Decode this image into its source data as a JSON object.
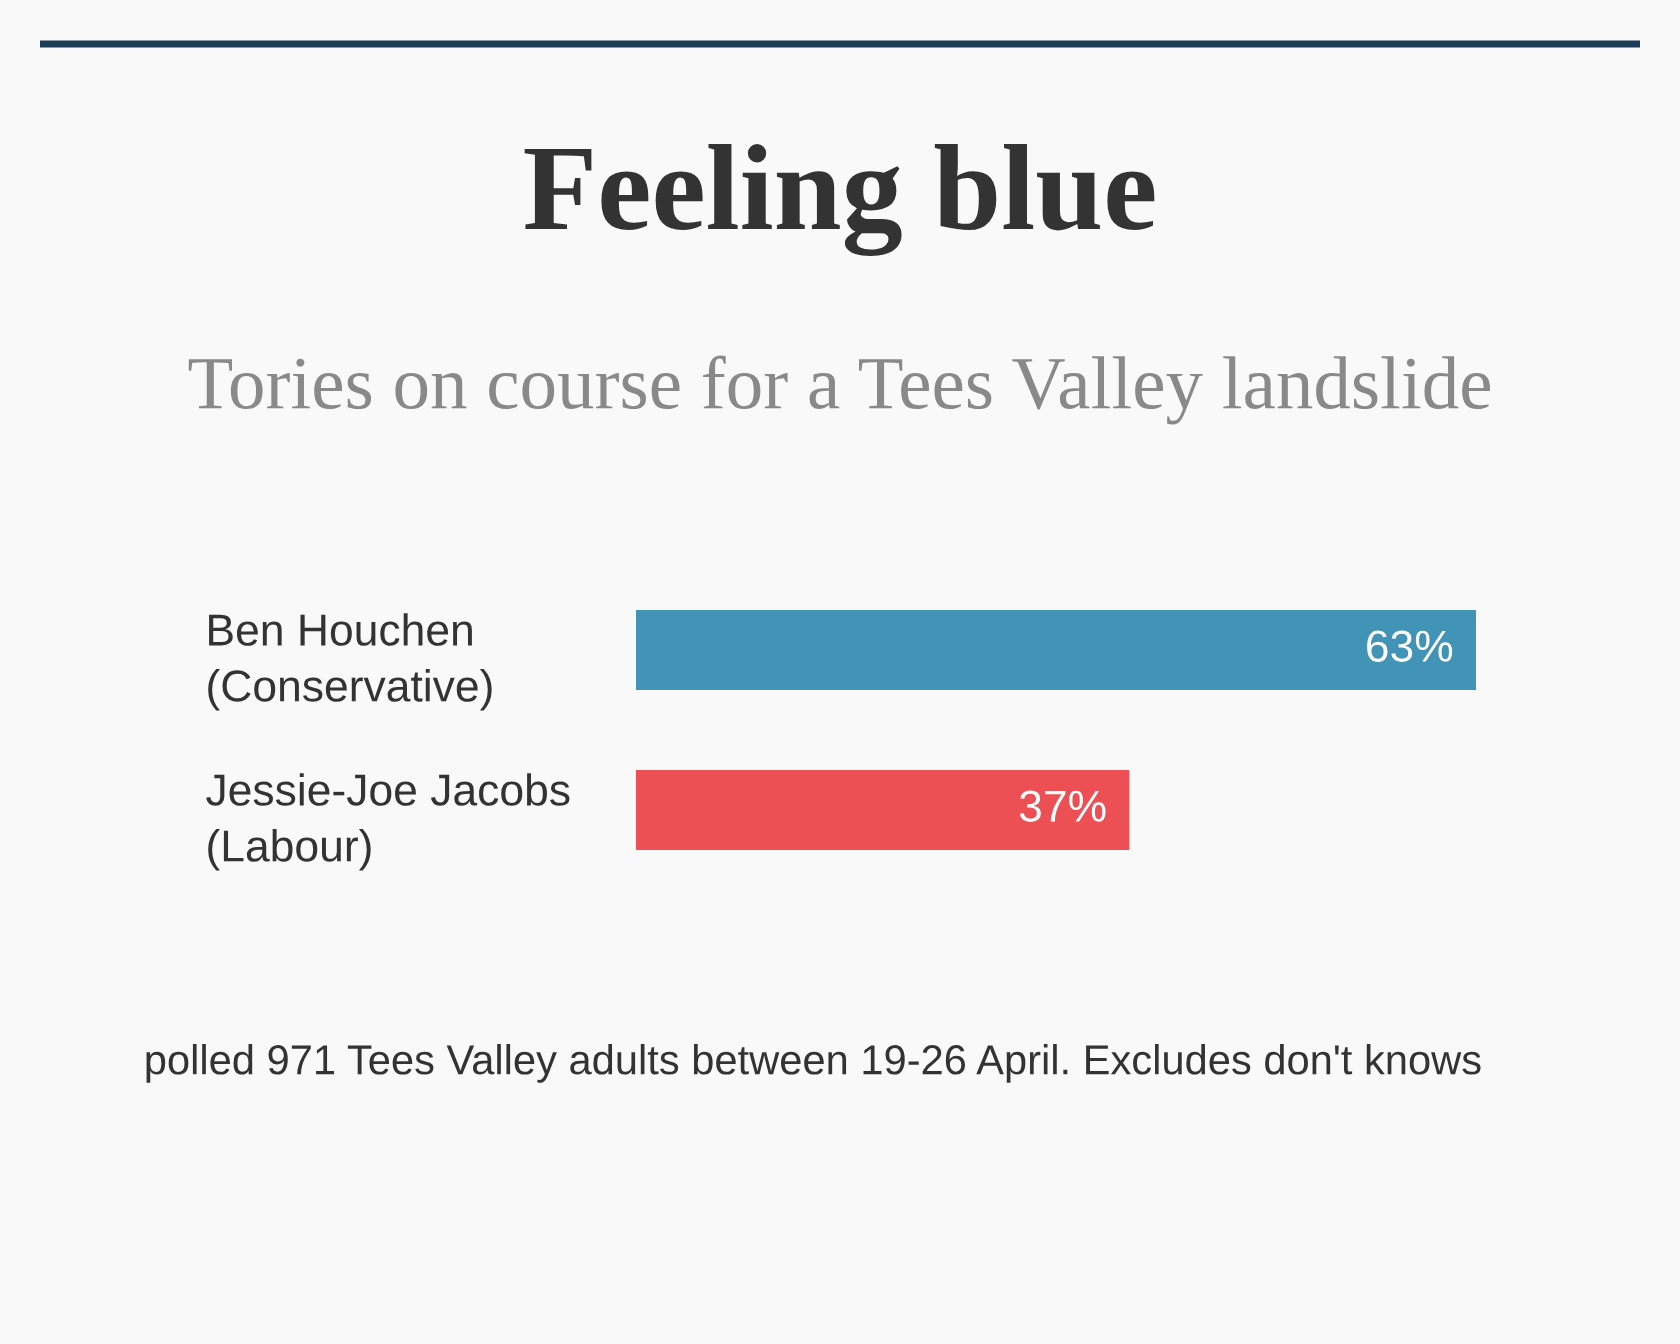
{
  "chart_data": {
    "type": "bar",
    "orientation": "horizontal",
    "title": "Feeling blue",
    "subtitle": "Tories on course for a Tees Valley landslide",
    "categories": [
      "Ben Houchen\n(Conservative)",
      "Jessie-Joe Jacobs\n(Labour)"
    ],
    "values": [
      63,
      37
    ],
    "colors": [
      "#4194b5",
      "#ec5055"
    ],
    "value_labels": [
      "63%",
      "37%"
    ],
    "annotations": [
      "polled 971 Tees Valley adults between 19-26 April. Excludes don't knows"
    ]
  }
}
